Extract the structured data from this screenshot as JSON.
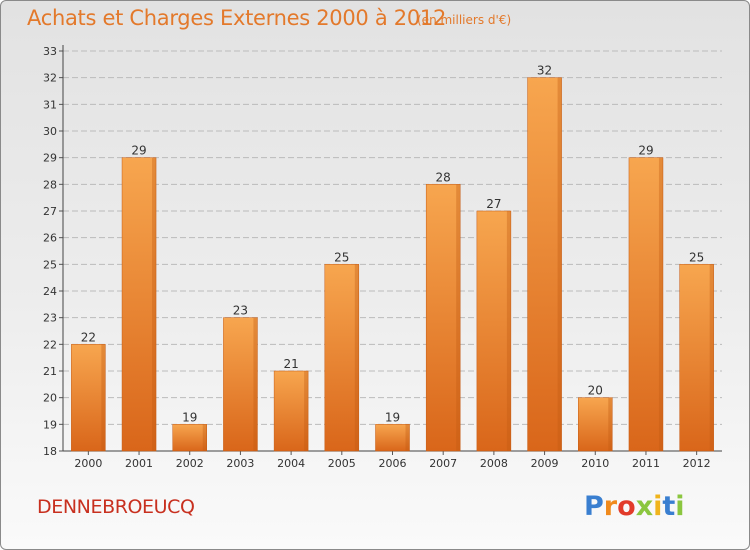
{
  "chart_data": {
    "type": "bar",
    "title": "Achats et Charges Externes 2000 à 2012",
    "unit_note": "(en milliers d'€)",
    "categories": [
      "2000",
      "2001",
      "2002",
      "2003",
      "2004",
      "2005",
      "2006",
      "2007",
      "2008",
      "2009",
      "2010",
      "2011",
      "2012"
    ],
    "values": [
      22,
      29,
      19,
      23,
      21,
      25,
      19,
      28,
      27,
      32,
      20,
      29,
      25
    ],
    "ylim": [
      18,
      33
    ],
    "yticks": [
      18,
      19,
      20,
      21,
      22,
      23,
      24,
      25,
      26,
      27,
      28,
      29,
      30,
      31,
      32,
      33
    ],
    "grid": true,
    "xlabel": "",
    "ylabel": "",
    "bar_color_light": "#f7a64f",
    "bar_color_dark": "#d9661a",
    "grid_color": "#bbbbbb"
  },
  "location_label": "DENNEBROEUCQ",
  "brand": {
    "name": "Proxiti",
    "letters": [
      "P",
      "r",
      "o",
      "x",
      "i",
      "t",
      "i"
    ],
    "letter_colors": [
      "#3a7fd0",
      "#f08a1c",
      "#e23b2a",
      "#8bc63f",
      "#f0b41c",
      "#3a7fd0",
      "#8bc63f"
    ]
  }
}
